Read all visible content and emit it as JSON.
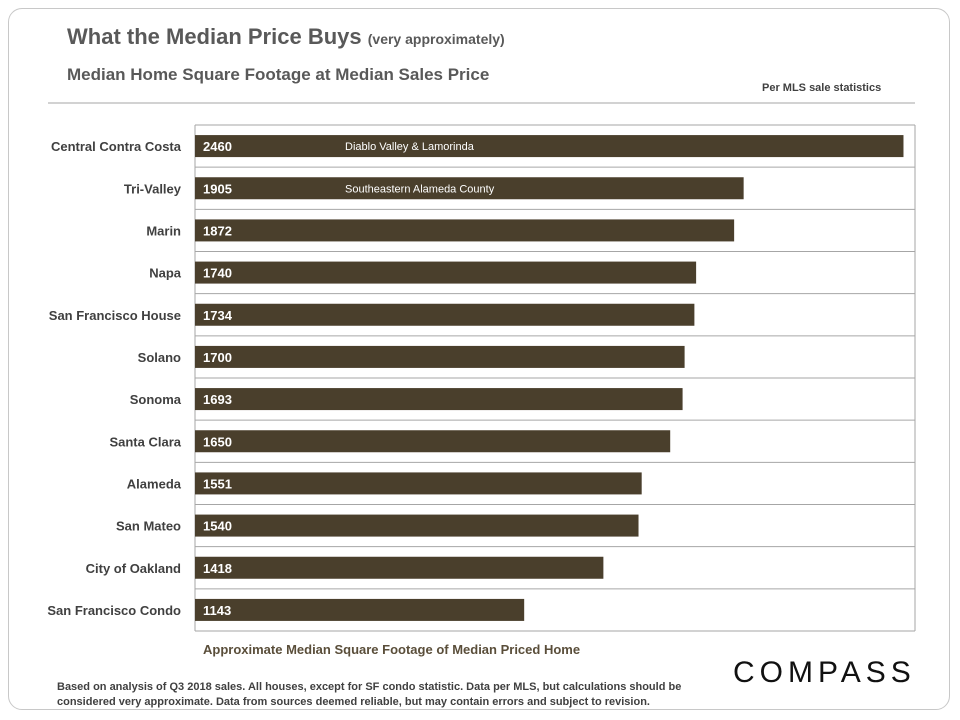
{
  "title": "What the Median Price Buys",
  "title_note": "(very approximately)",
  "subtitle": "Median Home Square Footage at Median Sales Price",
  "source_note": "Per MLS sale statistics",
  "footnote": "Based on analysis of Q3 2018 sales. All houses, except for SF condo statistic. Data per MLS, but calculations should be considered very approximate. Data from sources deemed reliable, but may contain errors and subject to revision.",
  "logo": "COMPASS",
  "colors": {
    "bar": "#4a3f2c",
    "grid": "#a6a6a6",
    "label": "#404040",
    "bar_text": "#ffffff"
  },
  "chart_data": {
    "type": "bar",
    "orientation": "horizontal",
    "title": "Median Home Square Footage at Median Sales Price",
    "xlabel": "Approximate Median Square Footage of Median Priced Home",
    "ylabel": "",
    "xlim": [
      0,
      2500
    ],
    "grid": true,
    "categories": [
      "Central Contra Costa",
      "Tri-Valley",
      "Marin",
      "Napa",
      "San Francisco House",
      "Solano",
      "Sonoma",
      "Santa Clara",
      "Alameda",
      "San Mateo",
      "City of Oakland",
      "San Francisco Condo"
    ],
    "values": [
      2460,
      1905,
      1872,
      1740,
      1734,
      1700,
      1693,
      1650,
      1551,
      1540,
      1418,
      1143
    ],
    "data_labels": [
      "2460",
      "1905",
      "1872",
      "1740",
      "1734",
      "1700",
      "1693",
      "1650",
      "1551",
      "1540",
      "1418",
      "1143"
    ],
    "annotations": [
      {
        "category": "Central Contra Costa",
        "text": "Diablo Valley & Lamorinda"
      },
      {
        "category": "Tri-Valley",
        "text": "Southeastern Alameda County"
      }
    ]
  }
}
